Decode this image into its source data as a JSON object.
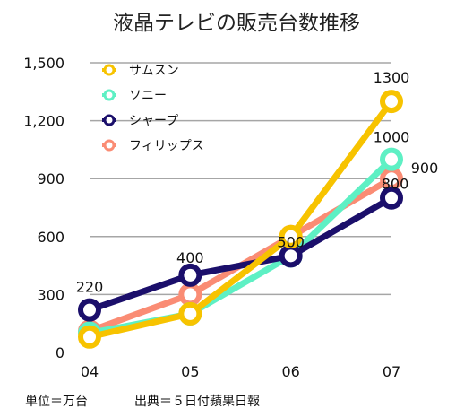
{
  "chart_data": {
    "type": "line",
    "title": "液晶テレビの販売台数推移",
    "categories": [
      "04",
      "05",
      "06",
      "07"
    ],
    "ylim": [
      0,
      1500
    ],
    "yticks": [
      "0",
      "300",
      "600",
      "900",
      "1,200",
      "1,500"
    ],
    "grid": true,
    "legend_position": "top-left",
    "series": [
      {
        "name": "サムスン",
        "color": "#f7c300",
        "values": [
          80,
          200,
          600,
          1300
        ]
      },
      {
        "name": "ソニー",
        "color": "#5ef0c4",
        "values": [
          100,
          200,
          500,
          1000
        ]
      },
      {
        "name": "シャープ",
        "color": "#1b0f6b",
        "values": [
          220,
          400,
          500,
          800
        ]
      },
      {
        "name": "フィリップス",
        "color": "#fa8c74",
        "values": [
          110,
          300,
          600,
          900
        ]
      }
    ],
    "data_labels": [
      {
        "text": "220",
        "series": 2,
        "index": 0
      },
      {
        "text": "400",
        "series": 2,
        "index": 1
      },
      {
        "text": "500",
        "series": 2,
        "index": 2
      },
      {
        "text": "1300",
        "series": 0,
        "index": 3
      },
      {
        "text": "1000",
        "series": 1,
        "index": 3
      },
      {
        "text": "900",
        "series": 3,
        "index": 3
      },
      {
        "text": "800",
        "series": 2,
        "index": 3
      }
    ]
  },
  "footnotes": {
    "unit": "単位＝万台",
    "source": "出典＝５日付蘋果日報"
  }
}
